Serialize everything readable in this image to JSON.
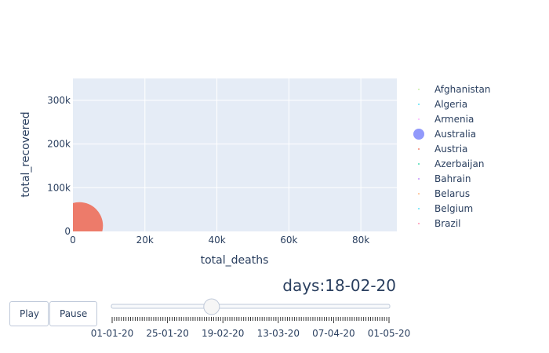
{
  "chart_data": {
    "type": "scatter",
    "title": "",
    "xlabel": "total_deaths",
    "ylabel": "total_recovered",
    "xlim": [
      0,
      90000
    ],
    "ylim": [
      0,
      350000
    ],
    "x_ticks": [
      0,
      20000,
      40000,
      60000,
      80000
    ],
    "x_tick_labels": [
      "0",
      "20k",
      "40k",
      "60k",
      "80k"
    ],
    "y_ticks": [
      0,
      100000,
      200000,
      300000
    ],
    "y_tick_labels": [
      "0",
      "100k",
      "200k",
      "300k"
    ],
    "grid": true,
    "legend_position": "right",
    "series": [
      {
        "name": "Afghanistan",
        "color": "#b6e880",
        "points": []
      },
      {
        "name": "Algeria",
        "color": "#19d3f3",
        "points": []
      },
      {
        "name": "Armenia",
        "color": "#ff97ff",
        "points": []
      },
      {
        "name": "Australia",
        "color": "#636efa",
        "points": []
      },
      {
        "name": "Austria",
        "color": "#ef553b",
        "points": []
      },
      {
        "name": "Azerbaijan",
        "color": "#00cc96",
        "points": []
      },
      {
        "name": "Bahrain",
        "color": "#ab63fa",
        "points": []
      },
      {
        "name": "Belarus",
        "color": "#ffa15a",
        "points": []
      },
      {
        "name": "Belgium",
        "color": "#19d3f3",
        "points": []
      },
      {
        "name": "Brazil",
        "color": "#ff6692",
        "points": []
      }
    ],
    "visible_bubble": {
      "x": 1800,
      "y": 13000,
      "color": "#ef553b"
    }
  },
  "controls": {
    "play_label": "Play",
    "pause_label": "Pause"
  },
  "slider": {
    "prefix": "days:",
    "current_value": "18-02-20",
    "current_fraction": 0.36,
    "tick_labels": [
      "01-01-20",
      "25-01-20",
      "19-02-20",
      "13-03-20",
      "07-04-20",
      "01-05-20"
    ]
  }
}
